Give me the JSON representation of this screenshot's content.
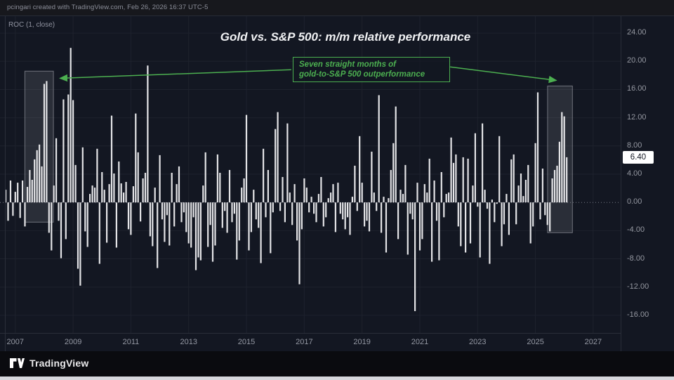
{
  "header": {
    "attribution": "pcingari created with TradingView.com, Feb 26, 2026 16:37 UTC-5"
  },
  "chart": {
    "indicator_label": "ROC (1, close)",
    "title": "Gold vs. S&P 500: m/m relative performance",
    "annotation_line1": "Seven straight months of",
    "annotation_line2": "gold-to-S&P 500 outperformance",
    "last_value_label": "6.40",
    "last_value": 6.4
  },
  "footer": {
    "logo_text": "TradingView"
  },
  "colors": {
    "background": "#131722",
    "bar": "#e4e4e7",
    "grid": "#1e222d",
    "zero_line": "#787b86",
    "accent_green": "#4caf50",
    "axis_text": "#9598a1",
    "badge_bg": "#ffffff",
    "badge_text": "#131722",
    "highlight_fill": "rgba(150,153,163,0.18)",
    "highlight_border": "rgba(178,181,190,0.55)"
  },
  "chart_data": {
    "type": "bar",
    "title": "Gold vs. S&P 500: m/m relative performance",
    "annotation": "Seven straight months of gold-to-S&P 500 outperformance",
    "last_value": 6.4,
    "grid": true,
    "legend_position": "none",
    "x_range": [
      2006.47,
      2027.95
    ],
    "y_range": [
      -18.5,
      26.4
    ],
    "y_ticks": [
      {
        "v": 24,
        "label": "24.00"
      },
      {
        "v": 20,
        "label": "20.00"
      },
      {
        "v": 16,
        "label": "16.00"
      },
      {
        "v": 12,
        "label": "12.00"
      },
      {
        "v": 8,
        "label": "8.00"
      },
      {
        "v": 4,
        "label": "4.00"
      },
      {
        "v": 0,
        "label": "0.00"
      },
      {
        "v": -4,
        "label": "-4.00"
      },
      {
        "v": -8,
        "label": "-8.00"
      },
      {
        "v": -12,
        "label": "-12.00"
      },
      {
        "v": -16,
        "label": "-16.00"
      }
    ],
    "x_ticks": [
      {
        "v": 2007,
        "label": "2007"
      },
      {
        "v": 2009,
        "label": "2009"
      },
      {
        "v": 2011,
        "label": "2011"
      },
      {
        "v": 2013,
        "label": "2013"
      },
      {
        "v": 2015,
        "label": "2015"
      },
      {
        "v": 2017,
        "label": "2017"
      },
      {
        "v": 2019,
        "label": "2019"
      },
      {
        "v": 2021,
        "label": "2021"
      },
      {
        "v": 2023,
        "label": "2023"
      },
      {
        "v": 2025,
        "label": "2025"
      },
      {
        "v": 2027,
        "label": "2027"
      }
    ],
    "highlight_boxes": [
      {
        "x1": 2007.33,
        "x2": 2008.32,
        "y1": -2.8,
        "y2": 18.6
      },
      {
        "x1": 2025.42,
        "x2": 2026.28,
        "y1": -4.3,
        "y2": 16.5
      }
    ],
    "arrows": [
      {
        "from": [
          2016.55,
          18.8
        ],
        "to": [
          2008.55,
          17.6
        ]
      },
      {
        "from": [
          2022.05,
          19.2
        ],
        "to": [
          2025.72,
          17.3
        ]
      }
    ],
    "series": [
      {
        "name": "ROC(1) of Gold/S&P 500 ratio, monthly %",
        "frequency": "monthly",
        "start_year": 2006,
        "start_month": 9,
        "values": [
          1.8,
          -2.6,
          3.1,
          -1.9,
          1.5,
          2.8,
          -2.2,
          3.1,
          -3.4,
          2.2,
          4.6,
          3.2,
          6.1,
          7.4,
          8.2,
          5.1,
          16.8,
          17.2,
          -4.3,
          -6.8,
          2.4,
          9.1,
          -2.6,
          -7.9,
          14.6,
          -5.2,
          15.3,
          21.9,
          14.5,
          5.3,
          -9.4,
          -11.8,
          7.8,
          -4.1,
          -6.3,
          1.2,
          2.4,
          2.1,
          7.6,
          -8.7,
          4.3,
          1.8,
          -5.7,
          2.6,
          12.3,
          4.1,
          -6.4,
          5.8,
          2.7,
          1.4,
          2.9,
          -3.8,
          -4.6,
          2.3,
          12.6,
          7.1,
          -2.7,
          3.4,
          4.2,
          19.4,
          -4.8,
          -6.2,
          2.1,
          -9.3,
          6.7,
          -2.4,
          -5.6,
          -1.8,
          -6.1,
          4.2,
          -3.4,
          2.6,
          5.1,
          -2.8,
          -1.4,
          -4.2,
          -5.8,
          -6.4,
          -2.1,
          -9.6,
          -7.8,
          -8.2,
          2.4,
          7.1,
          -6.3,
          -3.2,
          -8.4,
          -6.1,
          6.8,
          4.2,
          -3.6,
          -1.2,
          -4.3,
          4.6,
          -2.8,
          -1.6,
          -8.1,
          -5.4,
          2.1,
          3.4,
          12.4,
          -6.8,
          -4.2,
          1.8,
          -2.4,
          -3.6,
          -8.6,
          7.6,
          -2.1,
          4.6,
          -7.2,
          -1.4,
          10.4,
          12.8,
          -1.2,
          3.6,
          -2.8,
          11.2,
          1.4,
          -3.2,
          2.6,
          -5.4,
          -11.6,
          -3.8,
          3.4,
          2.1,
          -1.4,
          0.8,
          -1.6,
          -2.8,
          1.2,
          3.6,
          -3.4,
          -2.1,
          0.6,
          1.4,
          2.6,
          -4.2,
          2.8,
          -1.6,
          -2.4,
          -3.8,
          -2.1,
          -4.6,
          0.8,
          5.2,
          -1.2,
          9.4,
          2.8,
          -3.4,
          -2.6,
          -4.1,
          7.2,
          1.4,
          -1.2,
          15.2,
          -4.3,
          0.8,
          -7.1,
          0.6,
          4.6,
          8.4,
          13.6,
          -5.2,
          1.8,
          1.2,
          5.3,
          -7.4,
          -1.6,
          -2.4,
          -15.4,
          2.8,
          -6.8,
          -5.2,
          2.6,
          1.4,
          6.2,
          -8.4,
          3.1,
          -2.6,
          -8.2,
          4.3,
          -2.1,
          1.2,
          1.4,
          9.2,
          5.6,
          6.8,
          -3.4,
          -6.2,
          6.4,
          -7.1,
          6.2,
          -5.8,
          2.4,
          9.8,
          -0.6,
          -7.8,
          11.2,
          1.8,
          -0.9,
          -8.7,
          0.4,
          -2.8,
          -0.2,
          9.4,
          -6.2,
          -3.1,
          1.2,
          -4.6,
          6.1,
          6.8,
          -3.1,
          2.4,
          4.1,
          0.9,
          3.2,
          5.3,
          -5.8,
          -3.4,
          8.4,
          15.6,
          -2.4,
          4.8,
          -1.8,
          -3.2,
          -4.1,
          3.4,
          4.6,
          5.2,
          8.6,
          12.8,
          12.2,
          6.4
        ]
      }
    ]
  }
}
